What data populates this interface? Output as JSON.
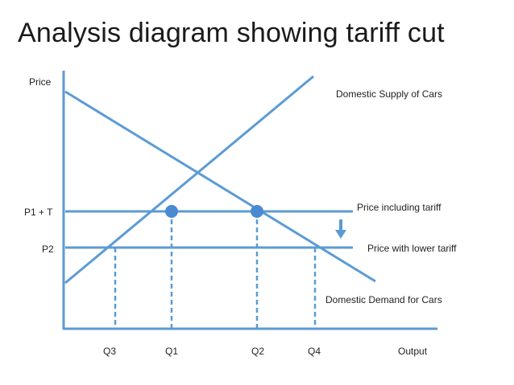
{
  "title": "Analysis diagram showing tariff cut",
  "colors": {
    "line": "#5b9bd5",
    "marker": "#4a8ad0",
    "text": "#222222"
  },
  "axes": {
    "y_label": "Price",
    "x_label": "Output"
  },
  "price_levels": {
    "upper": "P1 + T",
    "lower": "P2"
  },
  "quantity_levels": {
    "q1": "Q1",
    "q2": "Q2",
    "q3": "Q3",
    "q4": "Q4"
  },
  "curves": {
    "supply": "Domestic Supply of Cars",
    "demand": "Domestic Demand for Cars",
    "price_with_tariff": "Price including tariff",
    "price_lower_tariff": "Price with lower tariff"
  },
  "indicators": {
    "arrow": "down-arrow-icon"
  }
}
